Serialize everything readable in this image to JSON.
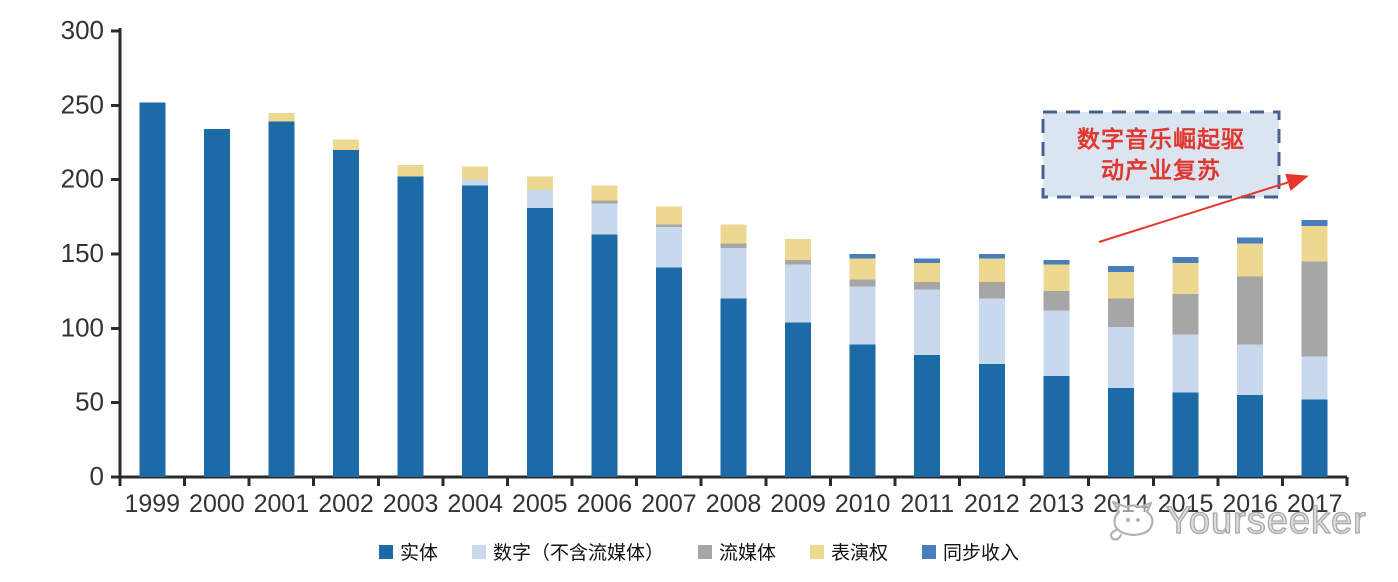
{
  "chart_data": {
    "type": "bar",
    "stacked": true,
    "title": "",
    "categories": [
      "1999",
      "2000",
      "2001",
      "2002",
      "2003",
      "2004",
      "2005",
      "2006",
      "2007",
      "2008",
      "2009",
      "2010",
      "2011",
      "2012",
      "2013",
      "2014",
      "2015",
      "2016",
      "2017"
    ],
    "series": [
      {
        "key": "physical",
        "name": "实体",
        "color": "#1c6aa6",
        "values": [
          252,
          234,
          239,
          220,
          202,
          196,
          181,
          163,
          141,
          120,
          104,
          89,
          82,
          76,
          68,
          60,
          57,
          55,
          52
        ]
      },
      {
        "key": "digital-ex-streaming",
        "name": "数字（不含流媒体）",
        "color": "#c8d9ee",
        "values": [
          0,
          0,
          0,
          0,
          0,
          4,
          12,
          21,
          27,
          34,
          39,
          39,
          44,
          44,
          44,
          41,
          39,
          34,
          29
        ]
      },
      {
        "key": "streaming",
        "name": "流媒体",
        "color": "#a6a6a6",
        "values": [
          0,
          0,
          0,
          0,
          0,
          0,
          0,
          2,
          2,
          3,
          3,
          5,
          5,
          11,
          13,
          19,
          27,
          46,
          64
        ]
      },
      {
        "key": "performance-rights",
        "name": "表演权",
        "color": "#ecd891",
        "values": [
          0,
          0,
          6,
          7,
          8,
          9,
          9,
          10,
          12,
          13,
          14,
          14,
          13,
          16,
          18,
          18,
          21,
          22,
          24
        ]
      },
      {
        "key": "sync-revenue",
        "name": "同步收入",
        "color": "#487ebb",
        "values": [
          0,
          0,
          0,
          0,
          0,
          0,
          0,
          0,
          0,
          0,
          0,
          3,
          3,
          3,
          3,
          4,
          4,
          4,
          4
        ]
      }
    ],
    "yticks": [
      0,
      50,
      100,
      150,
      200,
      250,
      300
    ],
    "ylim": [
      0,
      300
    ],
    "grid": false,
    "legend_position": "bottom",
    "axis_color": "#2b2b2b",
    "tick_label_color": "#333333"
  },
  "annotation": {
    "line1": "数字音乐崛起驱",
    "line2": "动产业复苏",
    "text_color": "#e0382e",
    "box_fill": "#dbe5f2",
    "box_border": "#47618c",
    "arrow_color": "#e8352c"
  },
  "watermark": {
    "text": "Yourseeker",
    "logo": "cat-face-icon",
    "color": "#a9a9a9"
  }
}
